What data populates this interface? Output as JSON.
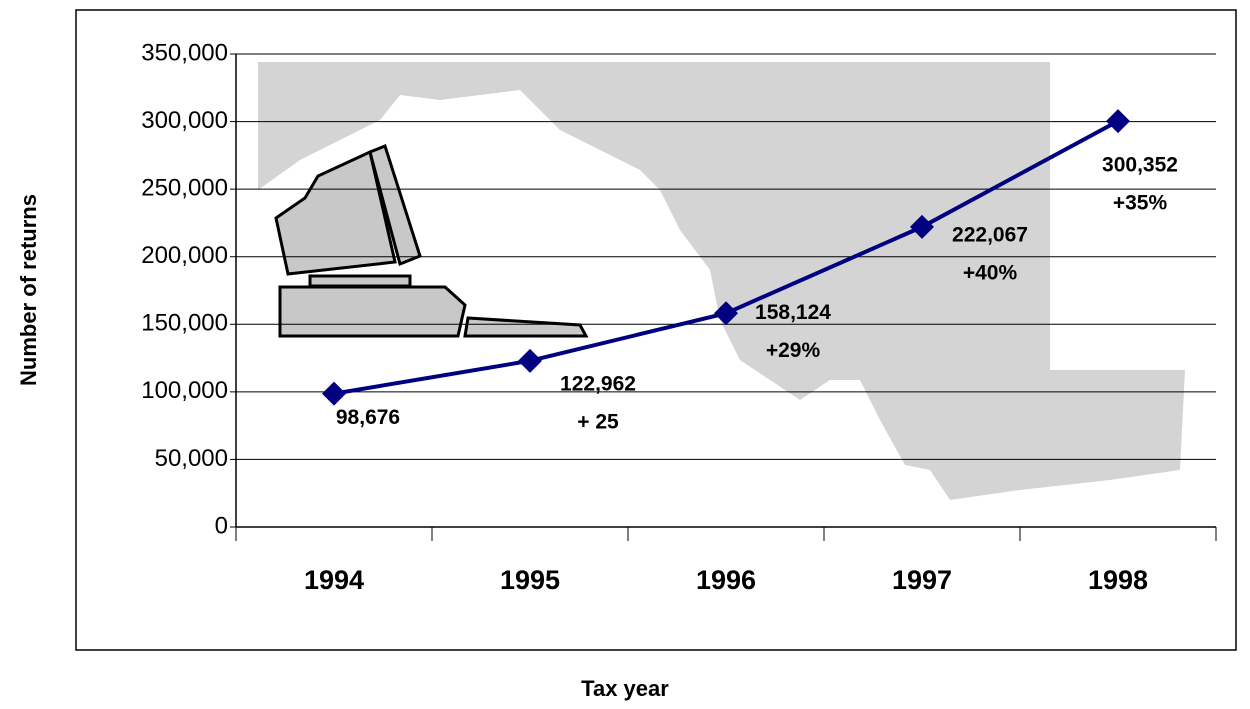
{
  "chart_data": {
    "type": "line",
    "x_label": "Tax year",
    "y_label": "Number of returns",
    "categories": [
      "1994",
      "1995",
      "1996",
      "1997",
      "1998"
    ],
    "values": [
      98676,
      122962,
      158124,
      222067,
      300352
    ],
    "value_labels": [
      "98,676",
      "122,962",
      "158,124",
      "222,067",
      "300,352"
    ],
    "annotations": [
      "+ 25",
      "+29%",
      "+40%",
      "+35%"
    ],
    "color": "#000080",
    "ylim": [
      0,
      350000
    ],
    "yticks": [
      0,
      {
        "value": 50000,
        "label": "50,000"
      },
      {
        "value": 100000,
        "label": "100,000"
      },
      {
        "value": 150000,
        "label": "150,000"
      },
      {
        "value": 200000,
        "label": "200,000"
      },
      {
        "value": 250000,
        "label": "250,000"
      },
      {
        "value": 300000,
        "label": "300,000"
      },
      {
        "value": 350000,
        "label": "350,000"
      }
    ],
    "grid": true
  }
}
